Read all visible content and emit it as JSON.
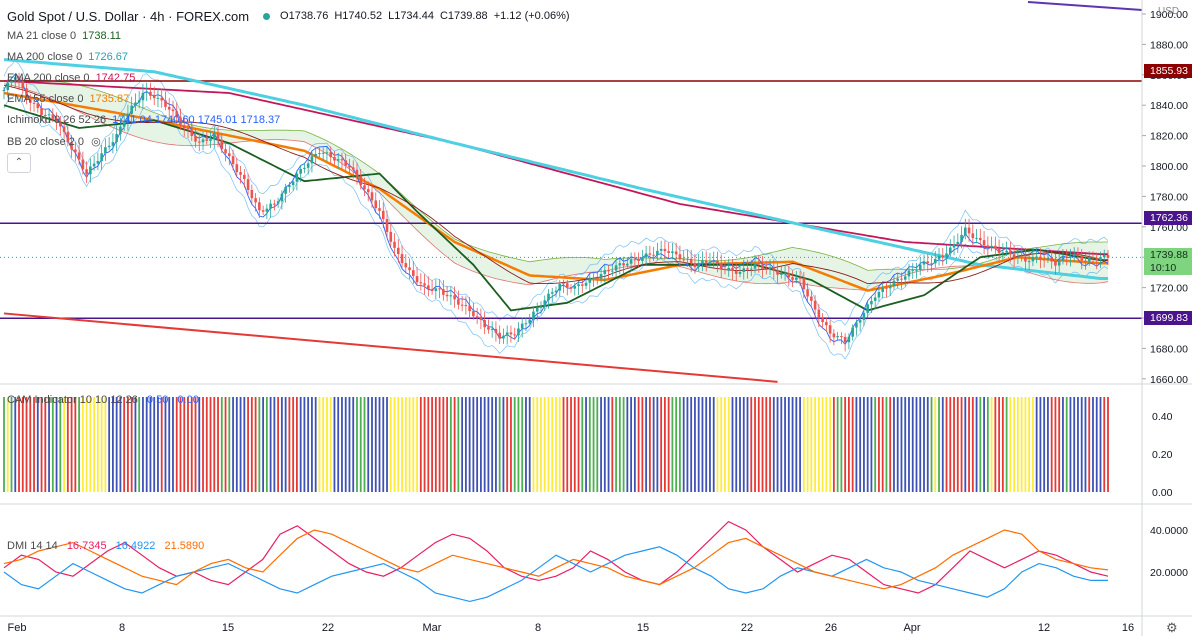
{
  "header": {
    "title": "Gold Spot / U.S. Dollar · 4h · FOREX.com",
    "open": "O1738.76",
    "high": "H1740.52",
    "low": "L1734.44",
    "close": "C1739.88",
    "change": "+1.12 (+0.06%)"
  },
  "indicators": [
    {
      "label": "MA 21 close 0",
      "value": "1738.11",
      "color": "#1b5e20"
    },
    {
      "label": "MA 200 close 0",
      "value": "1726.67",
      "color": "#4dd0e1"
    },
    {
      "label": "EMA 200 close 0",
      "value": "1742.75",
      "color": "#c2185b"
    },
    {
      "label": "EMA 55 close 0",
      "value": "1735.87",
      "color": "#f57c00"
    },
    {
      "label": "Ichimoku 9 26 52 26",
      "value": "1741.04  1740.60  1745.01  1718.37",
      "color": "#2962ff"
    },
    {
      "label": "BB 20 close 2 0",
      "value": "",
      "color": "#2196f3"
    }
  ],
  "price_axis": {
    "unit": "USD",
    "ticks": [
      "1900.00",
      "1880.00",
      "1860.00",
      "1840.00",
      "1820.00",
      "1800.00",
      "1780.00",
      "1760.00",
      "1740.00",
      "1720.00",
      "1700.00",
      "1680.00",
      "1660.00"
    ],
    "badges": [
      {
        "value": "1855.93",
        "bg": "#8b0000",
        "price": 1855.93
      },
      {
        "value": "1762.36",
        "bg": "#4a148c",
        "price": 1762.36
      },
      {
        "value": "1739.88",
        "bg": "#7fd47f",
        "price": 1739.88,
        "time": "10:10"
      },
      {
        "value": "1699.83",
        "bg": "#4a148c",
        "price": 1699.83
      }
    ]
  },
  "cam": {
    "label": "CAM Indicator 10 10 12 26",
    "v1": "0.50",
    "v2": "0.00",
    "ticks": [
      "0.40",
      "0.20",
      "0.00"
    ]
  },
  "dmi": {
    "label": "DMI 14 14",
    "plus": "16.7345",
    "minus": "16.4922",
    "adx": "21.5890",
    "ticks": [
      "40.0000",
      "20.0000"
    ]
  },
  "x_axis": {
    "labels": [
      "Feb",
      "8",
      "15",
      "22",
      "Mar",
      "8",
      "15",
      "22",
      "26",
      "Apr",
      "12",
      "16"
    ]
  },
  "chart_data": {
    "type": "line",
    "symbol": "XAUUSD",
    "interval": "4h",
    "ylim": [
      1655,
      1905
    ],
    "horizontal_levels": [
      1855.93,
      1762.36,
      1699.83
    ],
    "price_anchors": [
      [
        0,
        1850
      ],
      [
        3,
        1860
      ],
      [
        6,
        1845
      ],
      [
        10,
        1835
      ],
      [
        14,
        1830
      ],
      [
        18,
        1812
      ],
      [
        22,
        1795
      ],
      [
        26,
        1808
      ],
      [
        30,
        1820
      ],
      [
        33,
        1835
      ],
      [
        37,
        1848
      ],
      [
        40,
        1846
      ],
      [
        44,
        1838
      ],
      [
        48,
        1825
      ],
      [
        52,
        1815
      ],
      [
        56,
        1820
      ],
      [
        60,
        1805
      ],
      [
        64,
        1790
      ],
      [
        68,
        1770
      ],
      [
        72,
        1775
      ],
      [
        76,
        1788
      ],
      [
        80,
        1800
      ],
      [
        84,
        1810
      ],
      [
        88,
        1805
      ],
      [
        92,
        1800
      ],
      [
        96,
        1785
      ],
      [
        100,
        1770
      ],
      [
        104,
        1745
      ],
      [
        108,
        1730
      ],
      [
        112,
        1720
      ],
      [
        116,
        1718
      ],
      [
        120,
        1712
      ],
      [
        124,
        1705
      ],
      [
        128,
        1695
      ],
      [
        132,
        1688
      ],
      [
        136,
        1690
      ],
      [
        140,
        1700
      ],
      [
        144,
        1712
      ],
      [
        148,
        1722
      ],
      [
        152,
        1720
      ],
      [
        156,
        1725
      ],
      [
        160,
        1730
      ],
      [
        164,
        1735
      ],
      [
        168,
        1738
      ],
      [
        172,
        1742
      ],
      [
        176,
        1745
      ],
      [
        180,
        1740
      ],
      [
        184,
        1735
      ],
      [
        188,
        1738
      ],
      [
        192,
        1732
      ],
      [
        196,
        1730
      ],
      [
        200,
        1735
      ],
      [
        204,
        1732
      ],
      [
        208,
        1728
      ],
      [
        212,
        1725
      ],
      [
        216,
        1705
      ],
      [
        220,
        1690
      ],
      [
        224,
        1685
      ],
      [
        228,
        1700
      ],
      [
        232,
        1715
      ],
      [
        236,
        1722
      ],
      [
        240,
        1728
      ],
      [
        244,
        1735
      ],
      [
        248,
        1738
      ],
      [
        252,
        1745
      ],
      [
        256,
        1758
      ],
      [
        260,
        1750
      ],
      [
        264,
        1745
      ],
      [
        268,
        1742
      ],
      [
        272,
        1738
      ],
      [
        276,
        1740
      ],
      [
        280,
        1736
      ],
      [
        284,
        1742
      ],
      [
        288,
        1738
      ],
      [
        292,
        1740
      ]
    ],
    "ema200_anchors": [
      [
        0,
        1856
      ],
      [
        60,
        1848
      ],
      [
        120,
        1815
      ],
      [
        180,
        1775
      ],
      [
        240,
        1750
      ],
      [
        292,
        1742
      ]
    ],
    "ma200_anchors": [
      [
        0,
        1870
      ],
      [
        40,
        1862
      ],
      [
        80,
        1840
      ],
      [
        120,
        1815
      ],
      [
        170,
        1785
      ],
      [
        220,
        1757
      ],
      [
        260,
        1735
      ],
      [
        292,
        1726
      ]
    ],
    "ema55_anchors": [
      [
        0,
        1848
      ],
      [
        30,
        1835
      ],
      [
        60,
        1820
      ],
      [
        80,
        1810
      ],
      [
        100,
        1785
      ],
      [
        120,
        1750
      ],
      [
        140,
        1728
      ],
      [
        160,
        1725
      ],
      [
        180,
        1735
      ],
      [
        210,
        1737
      ],
      [
        230,
        1718
      ],
      [
        250,
        1728
      ],
      [
        270,
        1740
      ],
      [
        292,
        1736
      ]
    ],
    "ma21_anchors": [
      [
        0,
        1840
      ],
      [
        20,
        1825
      ],
      [
        40,
        1830
      ],
      [
        60,
        1815
      ],
      [
        80,
        1790
      ],
      [
        100,
        1795
      ],
      [
        110,
        1770
      ],
      [
        125,
        1735
      ],
      [
        135,
        1705
      ],
      [
        150,
        1710
      ],
      [
        170,
        1735
      ],
      [
        200,
        1735
      ],
      [
        215,
        1725
      ],
      [
        230,
        1705
      ],
      [
        245,
        1715
      ],
      [
        260,
        1740
      ],
      [
        275,
        1745
      ],
      [
        292,
        1738
      ]
    ],
    "trendline": {
      "from": [
        0,
        1703
      ],
      "to": [
        206,
        1658
      ]
    },
    "cam_colors": [
      "#4caf50",
      "#ffeb3b",
      "#3f51b5",
      "#e53935"
    ],
    "cam_pattern": "gygbrrrrrbrrbgbgyrrrgyyyyyyybbbbrrrbgbbbbbrbbbrrrrrrbrrrrrgrgbbbbrrrgbgbbrbbrrrbbbbbyyyybbbbbbgggbbbbbbyyyyyyyyrrrrrrrrgrgbbbbbbbbbbgbrrgggbbyyyyyyyyrrrrrgbgggbbbrgggbbbrrbrbbrrrgggbbbbbbbbbyyyybbbbbrrrrrrbbbbbbbbyyyyyyyyrggrrrbbbbbgrrgrbbbbbbbbbb",
    "dmi_plus": [
      22,
      28,
      26,
      20,
      18,
      24,
      30,
      34,
      28,
      22,
      18,
      20,
      16,
      14,
      20,
      26,
      38,
      42,
      36,
      30,
      24,
      20,
      18,
      22,
      28,
      34,
      38,
      36,
      30,
      22,
      18,
      16,
      18,
      22,
      30,
      26,
      20,
      16,
      14,
      20,
      28,
      36,
      44,
      40,
      32,
      26,
      20,
      24,
      28,
      26,
      20,
      14,
      12,
      10,
      14,
      22,
      30,
      26,
      22,
      26,
      30,
      28,
      24,
      20,
      18
    ],
    "dmi_minus": [
      20,
      14,
      12,
      18,
      24,
      20,
      16,
      12,
      10,
      14,
      18,
      20,
      22,
      24,
      20,
      16,
      12,
      10,
      14,
      18,
      20,
      22,
      24,
      20,
      16,
      10,
      8,
      6,
      8,
      12,
      16,
      22,
      28,
      24,
      20,
      24,
      28,
      30,
      32,
      28,
      22,
      18,
      12,
      10,
      12,
      18,
      22,
      20,
      18,
      22,
      26,
      22,
      20,
      16,
      14,
      12,
      10,
      8,
      12,
      20,
      24,
      22,
      18,
      16,
      16
    ],
    "dmi_adx": [
      24,
      26,
      30,
      32,
      34,
      30,
      26,
      22,
      18,
      16,
      14,
      20,
      24,
      26,
      22,
      20,
      28,
      36,
      40,
      38,
      34,
      30,
      26,
      22,
      20,
      24,
      28,
      26,
      24,
      22,
      20,
      18,
      22,
      26,
      24,
      22,
      18,
      16,
      14,
      18,
      22,
      28,
      34,
      36,
      32,
      28,
      24,
      20,
      18,
      16,
      14,
      12,
      14,
      18,
      22,
      28,
      32,
      36,
      40,
      38,
      30,
      26,
      24,
      22,
      21
    ]
  }
}
